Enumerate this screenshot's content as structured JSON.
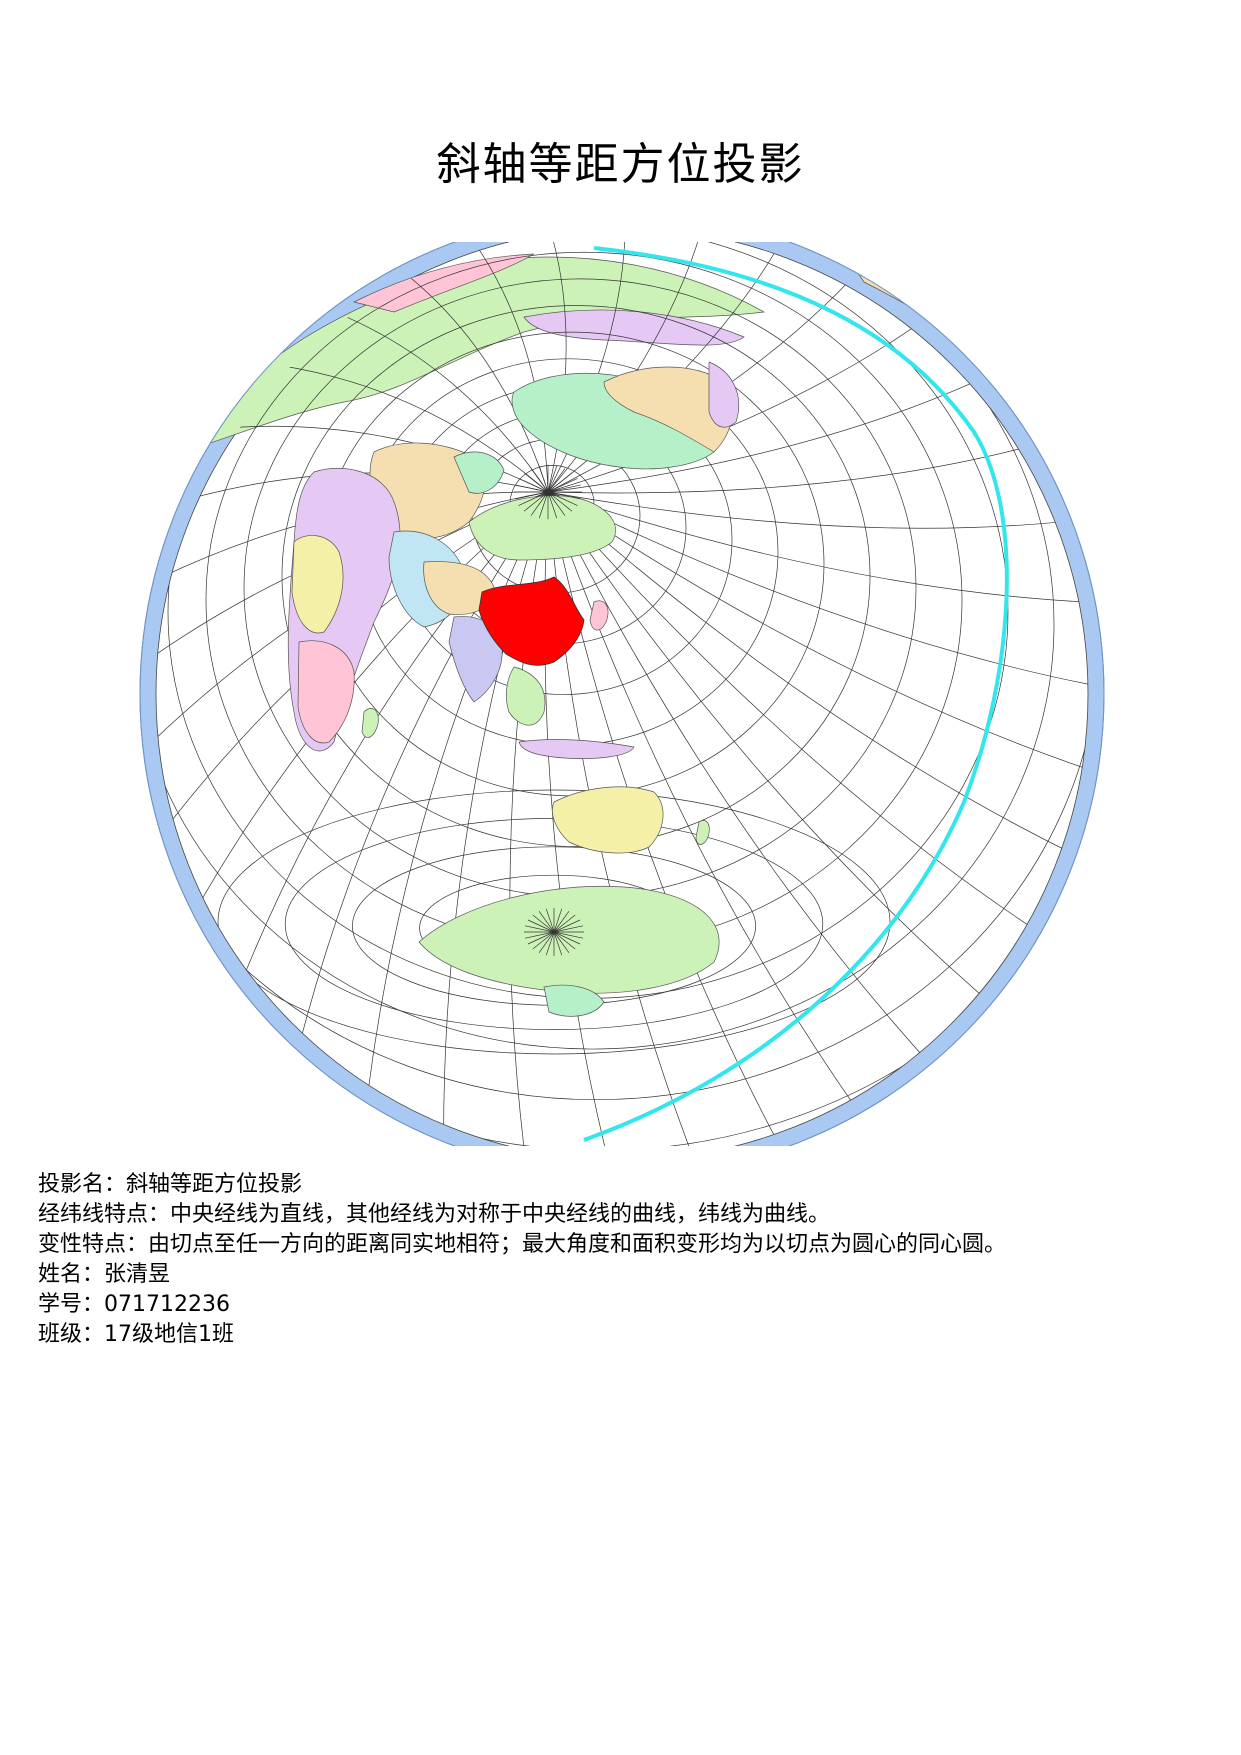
{
  "title": "斜轴等距方位投影",
  "info": {
    "projection": "投影名：斜轴等距方位投影",
    "graticule": "经纬线特点：中央经线为直线，其他经线为对称于中央经线的曲线，纬线为曲线。",
    "distortion": "变性特点：由切点至任一方向的距离同实地相符；最大角度和面积变形均为以切点为圆心的同心圆。",
    "name": "姓名：张清昱",
    "student_id": "学号：071712236",
    "class": "班级：17级地信1班"
  },
  "map": {
    "highlight_country": "China",
    "colors": {
      "ocean_ring": "#a9c9f2",
      "highlight": "#ff0000",
      "graticule": "#333333",
      "boundary_edge": "#33e6ec",
      "land_palette": [
        "#ccf2b8",
        "#f5deb0",
        "#e6c8f5",
        "#b6f0c8",
        "#f4f0a8",
        "#c9c8f2",
        "#ffc4d6",
        "#bfe6f2"
      ]
    }
  }
}
